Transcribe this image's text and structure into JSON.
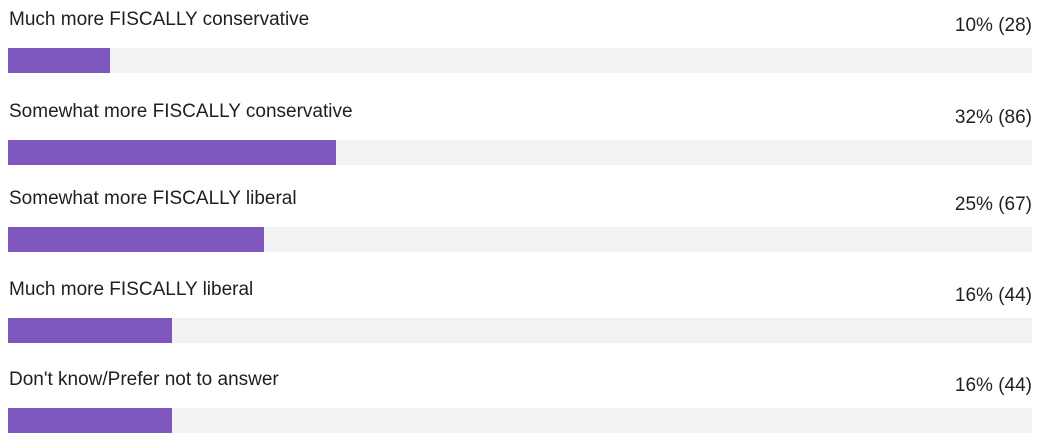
{
  "chart_data": {
    "type": "bar",
    "orientation": "horizontal",
    "bar_color": "#7e57be",
    "track_color": "#f2f2f2",
    "categories": [
      "Much more FISCALLY conservative",
      "Somewhat more FISCALLY conservative",
      "Somewhat more FISCALLY liberal",
      "Much more FISCALLY liberal",
      "Don't know/Prefer not to answer"
    ],
    "values": [
      10,
      32,
      25,
      16,
      16
    ],
    "value_labels": [
      "10% (28)",
      "32% (86)",
      "25% (67)",
      "16% (44)",
      "16% (44)"
    ],
    "counts": [
      28,
      86,
      67,
      44,
      44
    ],
    "xlim": [
      0,
      100
    ]
  }
}
